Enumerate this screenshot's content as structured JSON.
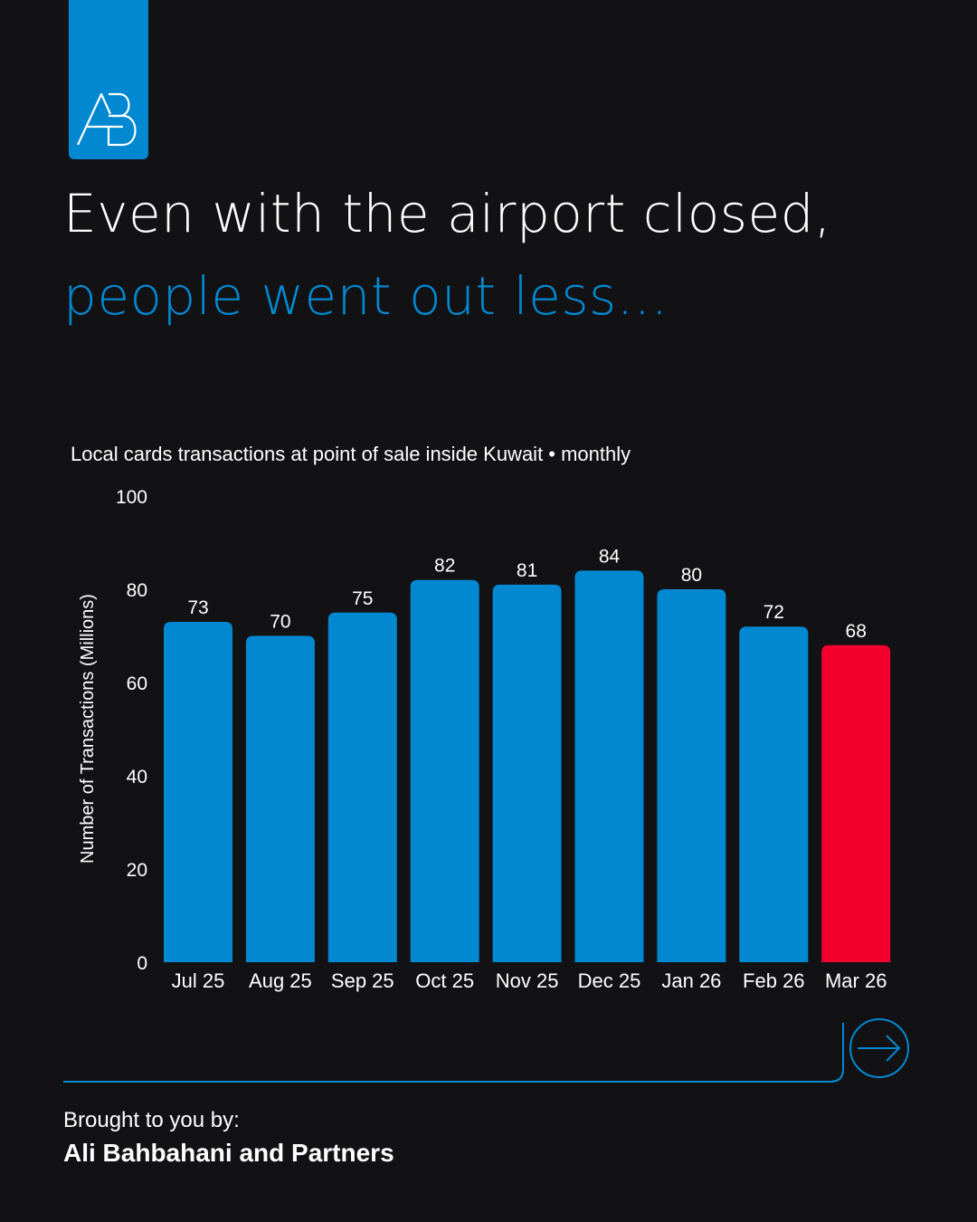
{
  "logo": {
    "text": "AB",
    "icon": "ab-monogram-logo",
    "color": "#0288d1"
  },
  "headline": {
    "line1": "Even with the airport closed,",
    "line2": "people went out less..."
  },
  "footer": {
    "intro": "Brought to you by:",
    "company": "Ali Bahbahani and Partners"
  },
  "next_icon": "arrow-right-circle-icon",
  "colors": {
    "background": "#121214",
    "accent": "#0288d1",
    "highlight": "#f5002e"
  },
  "chart_data": {
    "type": "bar",
    "title": "Local cards transactions at point of sale inside Kuwait • monthly",
    "ylabel": "Number of Transactions (Millions)",
    "xlabel": "",
    "categories": [
      "Jul 25",
      "Aug 25",
      "Sep 25",
      "Oct 25",
      "Nov 25",
      "Dec 25",
      "Jan 26",
      "Feb 26",
      "Mar 26"
    ],
    "values": [
      73,
      70,
      75,
      82,
      81,
      84,
      80,
      72,
      68
    ],
    "ylim": [
      0,
      100
    ],
    "yticks": [
      0,
      20,
      40,
      60,
      80,
      100
    ],
    "bar_color": "#0288d1",
    "highlight_color": "#f5002e",
    "highlight_index": 8,
    "grid": false,
    "legend": "none"
  }
}
